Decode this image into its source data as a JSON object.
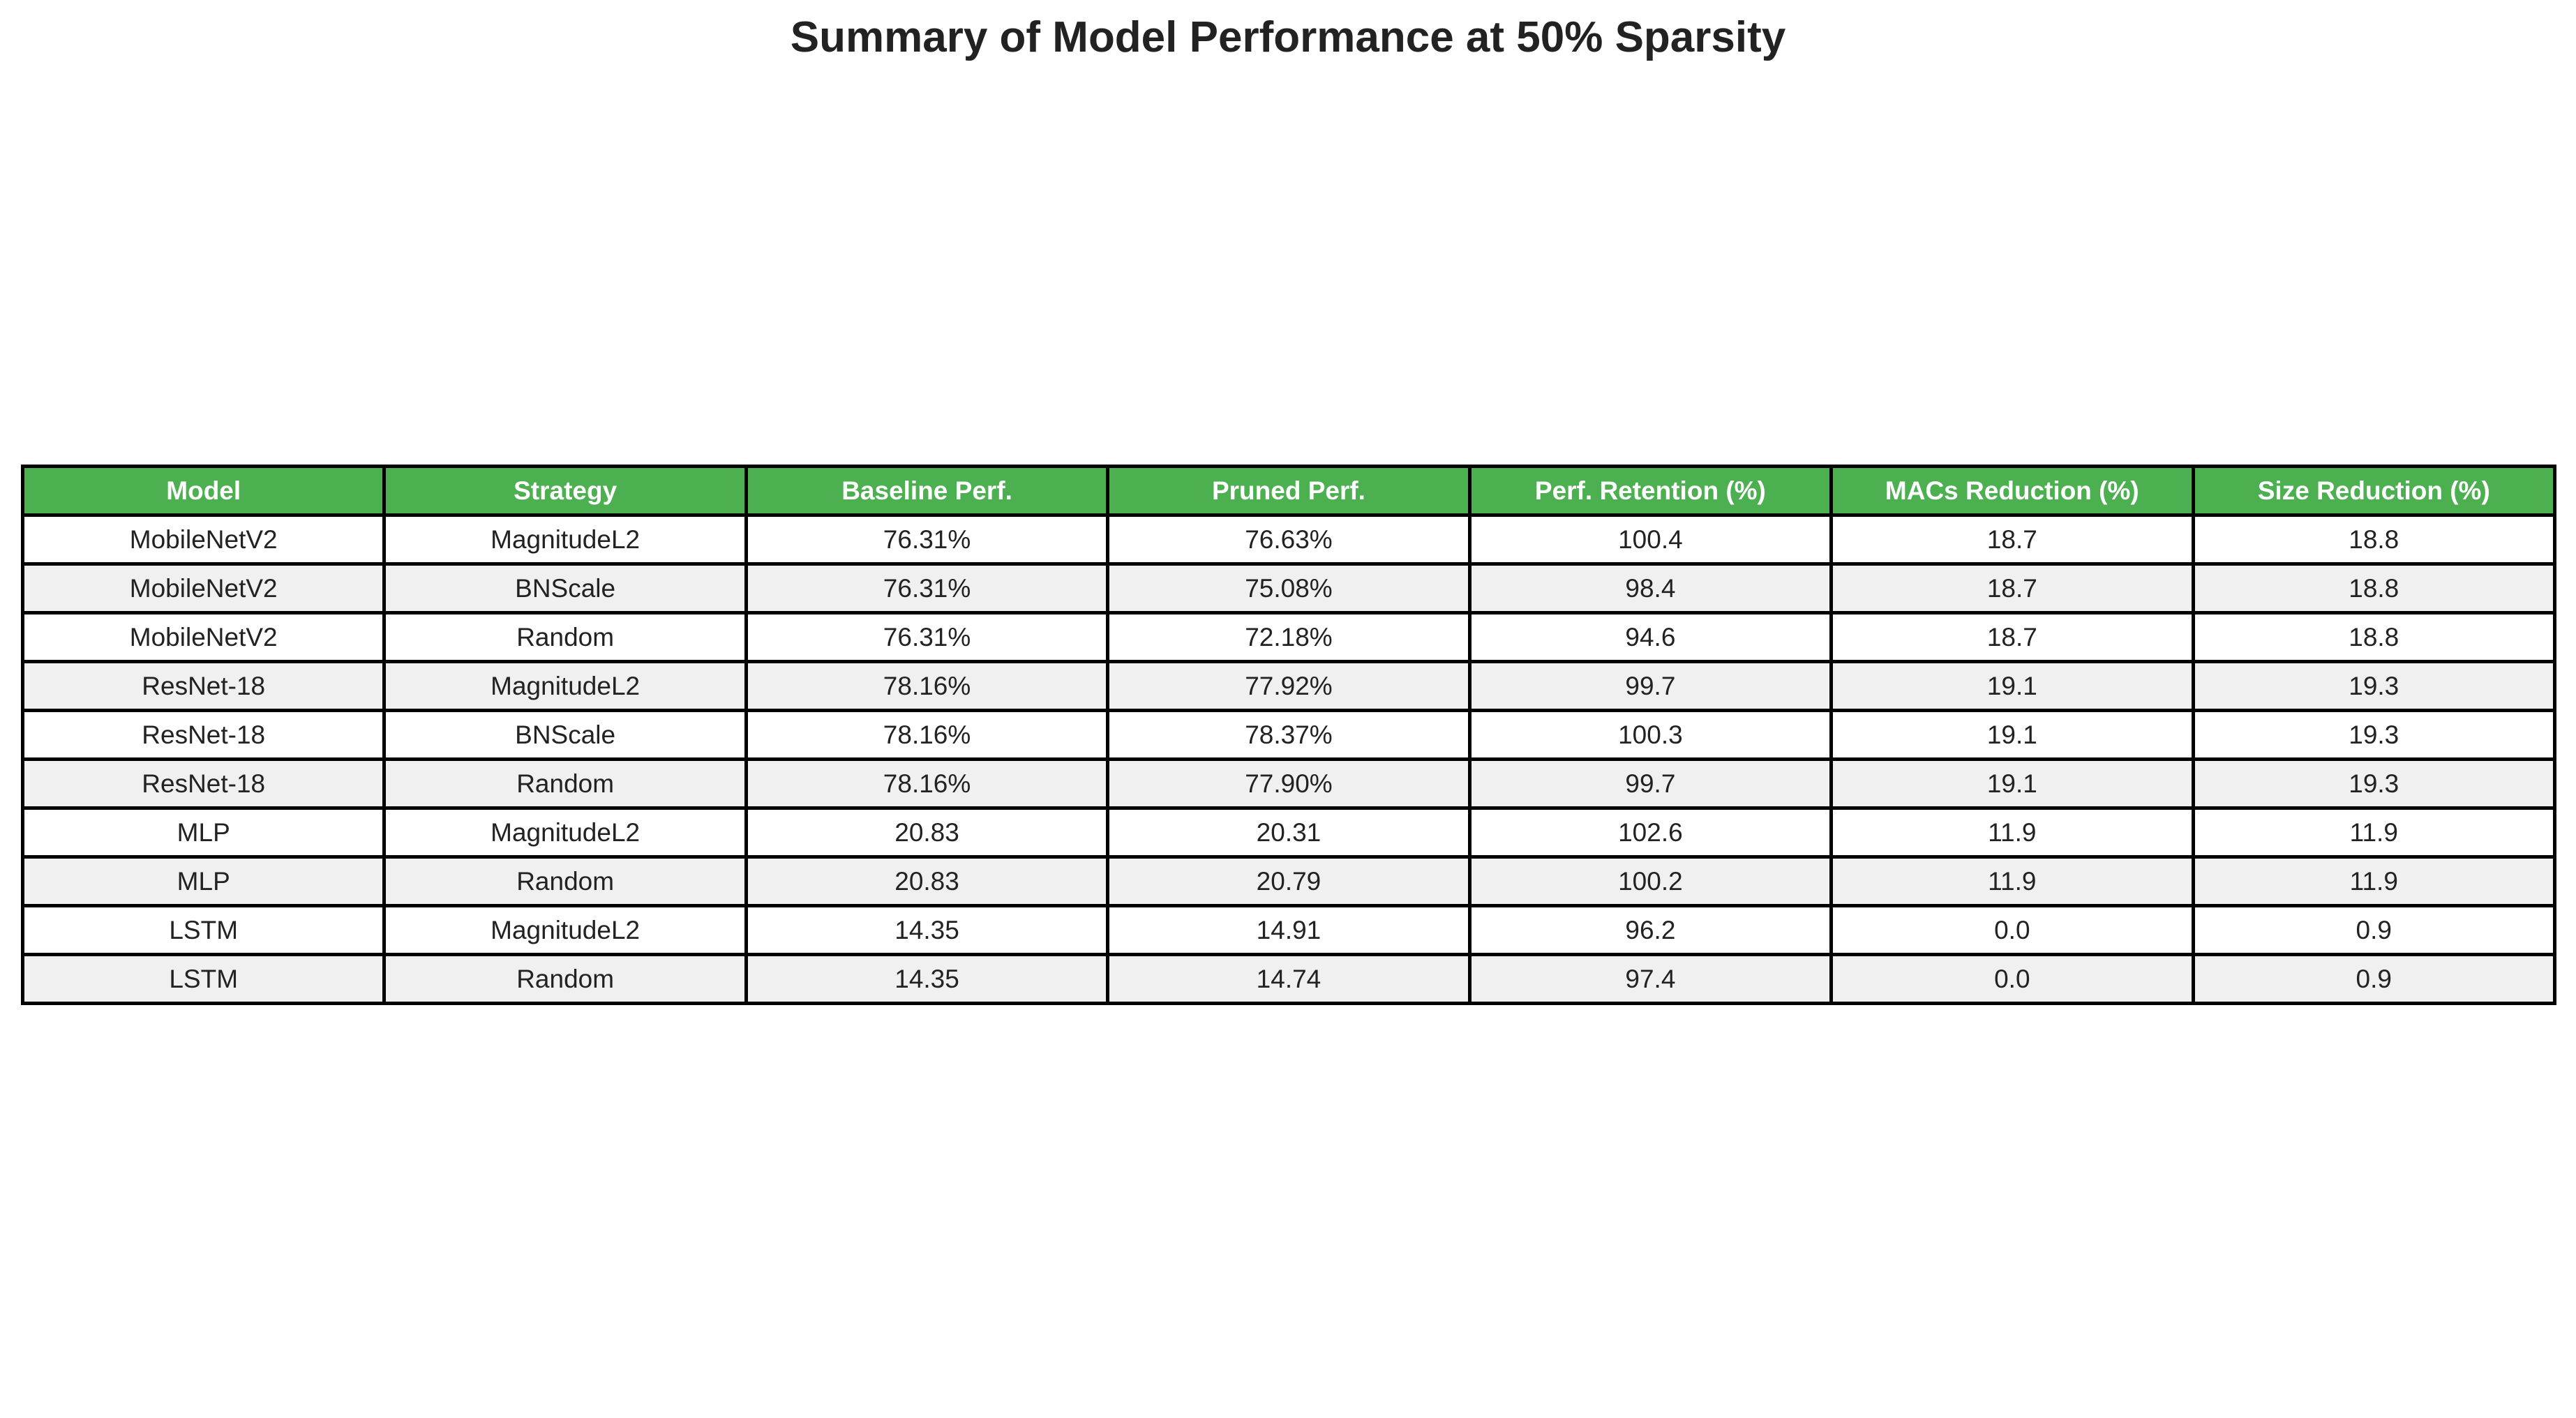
{
  "chart_data": {
    "type": "table",
    "title": "Summary of Model Performance at 50% Sparsity",
    "columns": [
      "Model",
      "Strategy",
      "Baseline Perf.",
      "Pruned Perf.",
      "Perf. Retention (%)",
      "MACs Reduction (%)",
      "Size Reduction (%)"
    ],
    "rows": [
      [
        "MobileNetV2",
        "MagnitudeL2",
        "76.31%",
        "76.63%",
        "100.4",
        "18.7",
        "18.8"
      ],
      [
        "MobileNetV2",
        "BNScale",
        "76.31%",
        "75.08%",
        "98.4",
        "18.7",
        "18.8"
      ],
      [
        "MobileNetV2",
        "Random",
        "76.31%",
        "72.18%",
        "94.6",
        "18.7",
        "18.8"
      ],
      [
        "ResNet-18",
        "MagnitudeL2",
        "78.16%",
        "77.92%",
        "99.7",
        "19.1",
        "19.3"
      ],
      [
        "ResNet-18",
        "BNScale",
        "78.16%",
        "78.37%",
        "100.3",
        "19.1",
        "19.3"
      ],
      [
        "ResNet-18",
        "Random",
        "78.16%",
        "77.90%",
        "99.7",
        "19.1",
        "19.3"
      ],
      [
        "MLP",
        "MagnitudeL2",
        "20.83",
        "20.31",
        "102.6",
        "11.9",
        "11.9"
      ],
      [
        "MLP",
        "Random",
        "20.83",
        "20.79",
        "100.2",
        "11.9",
        "11.9"
      ],
      [
        "LSTM",
        "MagnitudeL2",
        "14.35",
        "14.91",
        "96.2",
        "0.0",
        "0.9"
      ],
      [
        "LSTM",
        "Random",
        "14.35",
        "14.74",
        "97.4",
        "0.0",
        "0.9"
      ]
    ]
  },
  "colors": {
    "header_background": "#4caf50",
    "header_text": "#ffffff",
    "row_even": "#ffffff",
    "row_odd": "#f0f0f0",
    "border": "#000000"
  }
}
